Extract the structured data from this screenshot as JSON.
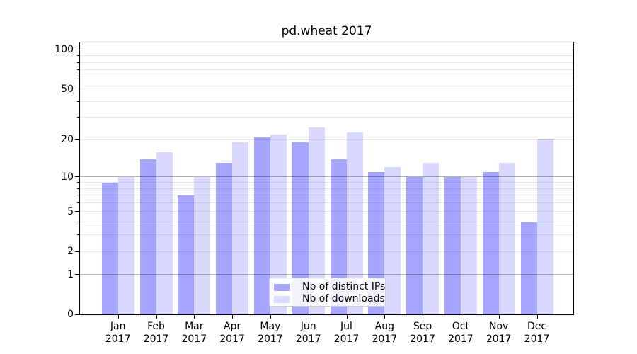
{
  "figure": {
    "background": "#ffffff"
  },
  "chart_data": {
    "type": "bar",
    "title": "pd.wheat 2017",
    "categories": [
      "Jan",
      "Feb",
      "Mar",
      "Apr",
      "May",
      "Jun",
      "Jul",
      "Aug",
      "Sep",
      "Oct",
      "Nov",
      "Dec"
    ],
    "category_year": "2017",
    "series": [
      {
        "name": "Nb of distinct IPs",
        "color": "#a6a6ff",
        "values": [
          9,
          14,
          7,
          13,
          21,
          19,
          14,
          11,
          10,
          10,
          11,
          4
        ]
      },
      {
        "name": "Nb of downloads",
        "color": "#d9d9ff",
        "values": [
          10,
          16,
          10,
          19,
          22,
          25,
          23,
          12,
          13,
          10,
          13,
          20
        ]
      }
    ],
    "y_scale": "log1p",
    "ylim": [
      0,
      114
    ],
    "y_major_ticks": [
      0,
      1,
      2,
      5,
      10,
      20,
      50,
      100
    ],
    "y_minor_ticks": [
      3,
      4,
      6,
      7,
      8,
      9,
      30,
      40,
      60,
      70,
      80,
      90
    ],
    "grid_major_values": [
      1,
      10,
      100
    ],
    "grid_minor_values": [
      2,
      3,
      4,
      5,
      6,
      7,
      8,
      9,
      20,
      30,
      40,
      50,
      60,
      70,
      80,
      90
    ],
    "legend_position": "lower center",
    "xlabel": "",
    "ylabel": ""
  },
  "colors": {
    "grid_major": "rgba(0,0,0,0.30)",
    "grid_minor": "rgba(0,0,0,0.09)",
    "spine": "#000000",
    "text": "#000000",
    "legend_border": "#cccccc",
    "legend_background": "rgba(255,255,255,0.85)"
  }
}
